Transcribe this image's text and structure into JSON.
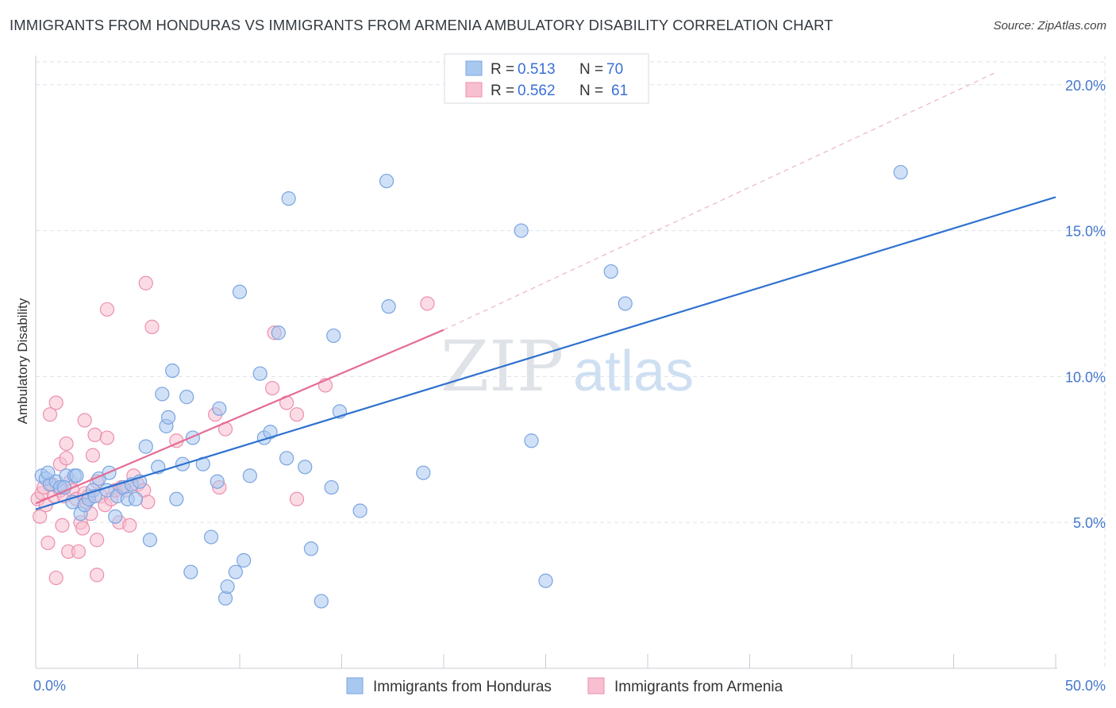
{
  "title": "IMMIGRANTS FROM HONDURAS VS IMMIGRANTS FROM ARMENIA AMBULATORY DISABILITY CORRELATION CHART",
  "source": "Source: ZipAtlas.com",
  "watermark": {
    "zip": "ZIP",
    "atlas": "atlas"
  },
  "colors": {
    "blue_fill": "#a9c8f0",
    "blue_stroke": "#7aa4e0",
    "blue_line": "#2f72d0",
    "pink_fill": "#f7bfd0",
    "pink_stroke": "#ec8fae",
    "pink_line": "#e56b94",
    "tick_text": "#4477cc",
    "grid": "#dde3ea"
  },
  "legend": {
    "r_label": "R = ",
    "n_label": "N = ",
    "blue": {
      "r": "0.513",
      "n": "70"
    },
    "pink": {
      "r": "0.562",
      "n": "61"
    }
  },
  "chart_data": {
    "type": "scatter",
    "xlabel": "",
    "ylabel": "Ambulatory Disability",
    "xlim": [
      0,
      50
    ],
    "ylim": [
      0,
      21
    ],
    "x_tick_labels": [
      "0.0%",
      "50.0%"
    ],
    "y_ticks": [
      5,
      10,
      15,
      20
    ],
    "y_tick_labels": [
      "5.0%",
      "10.0%",
      "15.0%",
      "20.0%"
    ],
    "grid": true,
    "legend_placement": "bottom",
    "series": [
      {
        "name": "Immigrants from Honduras",
        "color": "#a9c8f0",
        "trend": {
          "x": [
            0,
            50
          ],
          "y": [
            5.45,
            16.15
          ]
        },
        "points": [
          [
            0.3,
            6.6
          ],
          [
            0.5,
            6.5
          ],
          [
            0.7,
            6.3
          ],
          [
            0.6,
            6.7
          ],
          [
            1.0,
            6.4
          ],
          [
            1.2,
            6.2
          ],
          [
            1.5,
            6.6
          ],
          [
            1.8,
            5.7
          ],
          [
            1.9,
            6.6
          ],
          [
            2.0,
            6.6
          ],
          [
            2.2,
            5.3
          ],
          [
            2.4,
            5.6
          ],
          [
            2.6,
            5.8
          ],
          [
            2.8,
            6.1
          ],
          [
            3.1,
            6.5
          ],
          [
            3.5,
            6.1
          ],
          [
            3.6,
            6.7
          ],
          [
            3.9,
            5.2
          ],
          [
            4.0,
            5.9
          ],
          [
            4.3,
            6.2
          ],
          [
            4.5,
            5.8
          ],
          [
            4.7,
            6.3
          ],
          [
            4.9,
            5.8
          ],
          [
            5.1,
            6.4
          ],
          [
            5.4,
            7.6
          ],
          [
            5.6,
            4.4
          ],
          [
            6.0,
            6.9
          ],
          [
            6.2,
            9.4
          ],
          [
            6.4,
            8.3
          ],
          [
            6.5,
            8.6
          ],
          [
            6.7,
            10.2
          ],
          [
            6.9,
            5.8
          ],
          [
            7.2,
            7.0
          ],
          [
            7.4,
            9.3
          ],
          [
            7.6,
            3.3
          ],
          [
            7.7,
            7.9
          ],
          [
            8.2,
            7.0
          ],
          [
            8.6,
            4.5
          ],
          [
            8.9,
            6.4
          ],
          [
            9.0,
            8.9
          ],
          [
            9.3,
            2.4
          ],
          [
            9.4,
            2.8
          ],
          [
            9.8,
            3.3
          ],
          [
            10.0,
            12.9
          ],
          [
            10.2,
            3.7
          ],
          [
            10.5,
            6.6
          ],
          [
            11.0,
            10.1
          ],
          [
            11.2,
            7.9
          ],
          [
            11.5,
            8.1
          ],
          [
            11.9,
            11.5
          ],
          [
            12.3,
            7.2
          ],
          [
            12.4,
            16.1
          ],
          [
            13.2,
            6.9
          ],
          [
            13.5,
            4.1
          ],
          [
            14.0,
            2.3
          ],
          [
            14.5,
            6.2
          ],
          [
            14.6,
            11.4
          ],
          [
            14.9,
            8.8
          ],
          [
            15.9,
            5.4
          ],
          [
            17.2,
            16.7
          ],
          [
            17.3,
            12.4
          ],
          [
            19.0,
            6.7
          ],
          [
            23.8,
            15.0
          ],
          [
            24.3,
            7.8
          ],
          [
            25.0,
            3.0
          ],
          [
            28.2,
            13.6
          ],
          [
            28.9,
            12.5
          ],
          [
            42.4,
            17.0
          ],
          [
            1.4,
            6.2
          ],
          [
            2.9,
            5.9
          ]
        ]
      },
      {
        "name": "Immigrants from Armenia",
        "color": "#f7bfd0",
        "trend": {
          "x": [
            0,
            20
          ],
          "y": [
            5.65,
            11.6
          ]
        },
        "trend_dashed": {
          "x": [
            20,
            47
          ],
          "y": [
            11.6,
            20.4
          ]
        },
        "points": [
          [
            0.1,
            5.8
          ],
          [
            0.2,
            5.2
          ],
          [
            0.3,
            6.0
          ],
          [
            0.4,
            6.2
          ],
          [
            0.5,
            5.6
          ],
          [
            0.6,
            4.3
          ],
          [
            0.7,
            8.7
          ],
          [
            0.8,
            6.3
          ],
          [
            0.9,
            5.9
          ],
          [
            1.0,
            9.1
          ],
          [
            1.0,
            3.1
          ],
          [
            1.2,
            6.1
          ],
          [
            1.2,
            7.0
          ],
          [
            1.3,
            4.9
          ],
          [
            1.4,
            5.9
          ],
          [
            1.5,
            7.2
          ],
          [
            1.5,
            7.7
          ],
          [
            1.6,
            4.0
          ],
          [
            1.7,
            6.4
          ],
          [
            1.8,
            6.1
          ],
          [
            2.0,
            5.8
          ],
          [
            2.1,
            4.0
          ],
          [
            2.2,
            5.0
          ],
          [
            2.3,
            4.8
          ],
          [
            2.4,
            6.0
          ],
          [
            2.4,
            8.5
          ],
          [
            2.5,
            5.7
          ],
          [
            2.6,
            5.9
          ],
          [
            2.7,
            5.3
          ],
          [
            2.8,
            7.3
          ],
          [
            2.9,
            8.0
          ],
          [
            3.0,
            6.4
          ],
          [
            3.0,
            3.2
          ],
          [
            3.0,
            4.4
          ],
          [
            3.2,
            5.9
          ],
          [
            3.4,
            5.6
          ],
          [
            3.5,
            7.9
          ],
          [
            3.5,
            12.3
          ],
          [
            3.7,
            5.8
          ],
          [
            3.9,
            6.1
          ],
          [
            4.1,
            5.0
          ],
          [
            4.2,
            6.2
          ],
          [
            4.4,
            6.1
          ],
          [
            4.6,
            4.9
          ],
          [
            4.8,
            6.6
          ],
          [
            5.0,
            6.3
          ],
          [
            5.3,
            6.1
          ],
          [
            5.4,
            13.2
          ],
          [
            5.5,
            5.7
          ],
          [
            5.7,
            11.7
          ],
          [
            6.9,
            7.8
          ],
          [
            8.8,
            8.7
          ],
          [
            9.0,
            6.2
          ],
          [
            9.3,
            8.2
          ],
          [
            11.6,
            9.6
          ],
          [
            11.7,
            11.5
          ],
          [
            12.3,
            9.1
          ],
          [
            12.8,
            8.7
          ],
          [
            12.8,
            5.8
          ],
          [
            14.2,
            9.7
          ],
          [
            19.2,
            12.5
          ]
        ]
      }
    ]
  }
}
